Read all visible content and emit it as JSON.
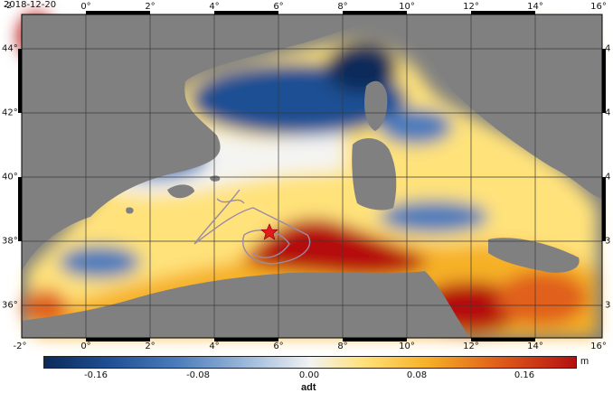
{
  "date": "2018-12-20",
  "corner_label": "-2",
  "lon_ticks": [
    "0°",
    "2°",
    "4°",
    "6°",
    "8°",
    "10°",
    "12°",
    "14°",
    "16°"
  ],
  "lon_ticks_bottom": [
    "-2°",
    "0°",
    "2°",
    "4°",
    "6°",
    "8°",
    "10°",
    "12°",
    "14°",
    "16°"
  ],
  "lat_ticks_left": [
    "44°",
    "42°",
    "40°",
    "38°",
    "36°"
  ],
  "lat_ticks_right": [
    "4",
    "4",
    "4",
    "3",
    "3"
  ],
  "colorbar": {
    "ticks": [
      "-0.16",
      "-0.08",
      "0.00",
      "0.08",
      "0.16"
    ],
    "unit": "m",
    "variable": "adt"
  },
  "colors": {
    "land": "#808080",
    "low": "#0b2a5a",
    "high": "#b51010",
    "marker": "#e41a1c"
  },
  "icons": {
    "marker": "star-icon"
  }
}
